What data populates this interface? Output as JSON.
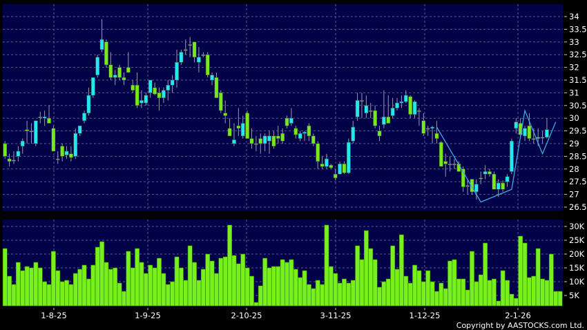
{
  "chart_data": [
    {
      "type": "candlestick",
      "ylim": [
        26.4,
        34.3
      ],
      "y_ticks": [
        "34",
        "33.5",
        "33",
        "32.5",
        "32",
        "31.5",
        "31",
        "30.5",
        "30",
        "29.5",
        "29",
        "28.5",
        "28",
        "27.5",
        "27",
        "26.5"
      ],
      "grid": true,
      "colors": {
        "up": "#22e8f4",
        "down": "#77e81c",
        "wick": "#9a9aa8",
        "background": "#020249",
        "zigzag": "#3fa9e0"
      },
      "ohlc": [
        [
          29.0,
          29.1,
          28.4,
          28.5
        ],
        [
          28.4,
          28.6,
          28.1,
          28.3
        ],
        [
          28.35,
          28.7,
          28.2,
          28.35
        ],
        [
          28.5,
          28.9,
          28.3,
          28.7
        ],
        [
          28.9,
          29.2,
          28.6,
          29.1
        ],
        [
          29.55,
          29.9,
          29.0,
          29.5
        ],
        [
          29.5,
          29.8,
          29.0,
          29.5
        ],
        [
          29.0,
          29.9,
          28.9,
          29.9
        ],
        [
          30.05,
          30.25,
          29.8,
          30.05
        ],
        [
          30.0,
          30.3,
          29.7,
          30.05
        ],
        [
          30.0,
          30.5,
          29.8,
          29.8
        ],
        [
          29.6,
          29.7,
          28.7,
          28.7
        ],
        [
          28.4,
          28.7,
          28.2,
          28.4
        ],
        [
          28.9,
          29.0,
          28.3,
          28.5
        ],
        [
          28.55,
          28.9,
          28.4,
          28.7
        ],
        [
          28.6,
          28.9,
          28.3,
          28.45
        ],
        [
          28.5,
          29.6,
          28.4,
          29.4
        ],
        [
          29.4,
          29.7,
          29.3,
          29.7
        ],
        [
          29.9,
          30.3,
          29.8,
          30.2
        ],
        [
          30.2,
          31.2,
          30.1,
          30.9
        ],
        [
          30.9,
          31.6,
          30.8,
          31.6
        ],
        [
          31.7,
          32.5,
          31.6,
          32.4
        ],
        [
          32.7,
          33.9,
          32.6,
          33.1
        ],
        [
          33.0,
          33.1,
          32.0,
          32.1
        ],
        [
          32.1,
          32.6,
          31.5,
          31.6
        ],
        [
          31.6,
          31.9,
          31.3,
          31.7
        ],
        [
          32.0,
          32.1,
          31.5,
          31.6
        ],
        [
          31.6,
          31.8,
          31.3,
          31.5
        ],
        [
          32.0,
          32.6,
          31.8,
          31.8
        ],
        [
          31.3,
          31.5,
          31.0,
          31.1
        ],
        [
          31.3,
          31.8,
          30.4,
          30.5
        ],
        [
          30.6,
          31.1,
          30.4,
          30.7
        ],
        [
          30.6,
          31.0,
          30.5,
          30.9
        ],
        [
          31.0,
          31.5,
          30.8,
          31.5
        ],
        [
          31.2,
          31.4,
          30.9,
          30.95
        ],
        [
          31.0,
          31.2,
          30.3,
          30.8
        ],
        [
          30.8,
          31.2,
          30.6,
          31.1
        ],
        [
          31.1,
          31.5,
          30.7,
          31.3
        ],
        [
          31.3,
          31.7,
          31.0,
          31.5
        ],
        [
          31.5,
          32.7,
          31.2,
          32.2
        ],
        [
          32.2,
          32.7,
          32.1,
          32.6
        ],
        [
          32.7,
          33.1,
          32.5,
          32.7
        ],
        [
          32.9,
          33.2,
          32.4,
          32.9
        ],
        [
          33.0,
          33.0,
          32.2,
          32.4
        ],
        [
          32.2,
          32.8,
          31.8,
          32.4
        ],
        [
          32.5,
          32.6,
          32.4,
          32.5
        ],
        [
          32.5,
          32.6,
          31.6,
          31.7
        ],
        [
          31.5,
          31.8,
          31.3,
          31.7
        ],
        [
          31.6,
          31.8,
          30.8,
          30.8
        ],
        [
          31.0,
          31.1,
          30.2,
          30.3
        ],
        [
          30.2,
          30.7,
          29.8,
          30.1
        ],
        [
          29.6,
          30.0,
          29.3,
          29.3
        ],
        [
          29.0,
          29.8,
          28.9,
          29.15
        ],
        [
          29.7,
          30.4,
          29.3,
          29.6
        ],
        [
          29.3,
          30.1,
          29.2,
          29.8
        ],
        [
          30.2,
          30.3,
          29.2,
          29.2
        ],
        [
          29.2,
          29.6,
          28.8,
          29.0
        ],
        [
          29.0,
          29.3,
          28.7,
          29.0
        ],
        [
          29.2,
          29.4,
          28.6,
          29.0
        ],
        [
          29.0,
          29.4,
          28.7,
          29.3
        ],
        [
          29.1,
          29.5,
          28.6,
          29.3
        ],
        [
          29.3,
          29.5,
          28.8,
          28.9
        ],
        [
          29.3,
          29.7,
          29.0,
          29.2
        ],
        [
          29.4,
          29.6,
          29.0,
          29.1
        ],
        [
          30.0,
          30.1,
          29.6,
          29.7
        ],
        [
          29.8,
          30.4,
          29.7,
          30.0
        ],
        [
          29.6,
          29.7,
          29.2,
          29.35
        ],
        [
          29.2,
          29.5,
          29.1,
          29.4
        ],
        [
          29.4,
          29.5,
          29.1,
          29.45
        ],
        [
          29.7,
          29.8,
          29.1,
          29.3
        ],
        [
          29.3,
          29.4,
          28.9,
          29.0
        ],
        [
          29.0,
          29.1,
          28.0,
          28.3
        ],
        [
          28.2,
          28.5,
          28.0,
          28.1
        ],
        [
          28.1,
          28.6,
          28.0,
          28.4
        ],
        [
          28.15,
          28.2,
          28.0,
          28.05
        ],
        [
          27.8,
          28.0,
          27.55,
          27.65
        ],
        [
          27.8,
          28.3,
          27.8,
          28.2
        ],
        [
          28.2,
          28.3,
          27.8,
          27.85
        ],
        [
          27.85,
          29.2,
          27.8,
          29.05
        ],
        [
          29.1,
          29.9,
          29.0,
          29.65
        ],
        [
          30.05,
          31.0,
          29.9,
          30.7
        ],
        [
          30.7,
          31.0,
          30.0,
          30.7
        ],
        [
          30.2,
          30.9,
          30.0,
          30.5
        ],
        [
          30.3,
          30.6,
          30.0,
          30.3
        ],
        [
          30.3,
          30.5,
          29.6,
          29.7
        ],
        [
          29.5,
          29.7,
          29.1,
          29.3
        ],
        [
          29.75,
          31.1,
          29.6,
          30.05
        ],
        [
          30.05,
          30.9,
          29.8,
          29.8
        ],
        [
          30.1,
          30.8,
          30.0,
          30.4
        ],
        [
          30.4,
          30.8,
          30.3,
          30.6
        ],
        [
          30.6,
          30.9,
          30.4,
          30.65
        ],
        [
          30.65,
          31.1,
          30.6,
          30.9
        ],
        [
          30.85,
          30.9,
          30.0,
          30.15
        ],
        [
          30.15,
          30.7,
          30.0,
          30.65
        ],
        [
          30.3,
          30.4,
          29.7,
          30.3
        ],
        [
          29.9,
          30.2,
          29.3,
          29.4
        ],
        [
          29.6,
          29.7,
          29.3,
          29.6
        ],
        [
          29.6,
          29.7,
          29.0,
          29.65
        ],
        [
          29.4,
          29.9,
          29.0,
          29.2
        ],
        [
          29.05,
          29.1,
          28.1,
          28.1
        ],
        [
          28.3,
          28.6,
          27.7,
          28.2
        ],
        [
          28.2,
          28.5,
          27.9,
          28.2
        ],
        [
          28.2,
          28.4,
          28.0,
          28.2
        ],
        [
          28.2,
          28.3,
          27.9,
          27.9
        ],
        [
          28.0,
          28.1,
          27.1,
          27.3
        ],
        [
          27.35,
          27.6,
          27.0,
          27.35
        ],
        [
          27.6,
          27.6,
          27.0,
          27.1
        ],
        [
          27.1,
          27.6,
          26.8,
          27.4
        ],
        [
          27.65,
          27.9,
          27.4,
          27.65
        ],
        [
          27.8,
          28.15,
          27.6,
          27.9
        ],
        [
          27.9,
          28.0,
          27.7,
          27.8
        ],
        [
          27.8,
          27.9,
          27.2,
          27.2
        ],
        [
          27.2,
          27.6,
          26.9,
          27.45
        ],
        [
          27.45,
          27.55,
          27.1,
          27.2
        ],
        [
          27.5,
          27.8,
          27.3,
          27.7
        ],
        [
          27.9,
          29.2,
          27.8,
          29.1
        ],
        [
          29.6,
          30.0,
          29.4,
          29.85
        ],
        [
          29.8,
          30.0,
          29.2,
          29.35
        ],
        [
          29.3,
          29.7,
          29.1,
          29.6
        ],
        [
          29.7,
          30.2,
          29.1,
          29.2
        ],
        [
          29.2,
          29.6,
          29.0,
          29.2
        ],
        [
          29.2,
          29.6,
          28.9,
          29.25
        ],
        [
          29.25,
          29.5,
          29.0,
          29.25
        ],
        [
          29.25,
          30.0,
          29.2,
          29.55
        ]
      ],
      "zigzag": [
        {
          "bar": 98,
          "price": 29.65
        },
        {
          "bar": 108,
          "price": 26.7
        },
        {
          "bar": 115,
          "price": 27.2
        },
        {
          "bar": 118,
          "price": 30.3
        },
        {
          "bar": 122,
          "price": 28.6
        },
        {
          "bar": 125,
          "price": 29.85
        }
      ]
    },
    {
      "type": "bar",
      "unit": "K",
      "ylim": [
        0,
        32
      ],
      "y_ticks": [
        "30K",
        "25K",
        "20K",
        "15K",
        "10K",
        "5K"
      ],
      "x_tick_labels": [
        "1-8-25",
        "1-9-25",
        "2-10-25",
        "3-11-25",
        "1-12-25",
        "2-1-26"
      ],
      "grid": true,
      "colors": {
        "bar": "#77f01c",
        "background": "#020249"
      },
      "values": [
        22,
        12,
        9,
        17,
        14,
        15.5,
        15,
        17,
        15,
        10,
        9,
        21,
        14,
        10,
        10.5,
        9,
        13,
        14.5,
        16,
        11,
        16,
        22.5,
        24.5,
        17,
        14.5,
        15,
        9.5,
        6.5,
        21,
        15,
        22,
        17,
        13,
        16,
        15,
        18.5,
        13,
        9,
        10,
        19,
        15,
        10.5,
        23,
        17,
        10.5,
        14.5,
        20,
        17.5,
        13,
        18.5,
        19,
        30.5,
        19.5,
        16.5,
        20,
        15,
        12,
        2.5,
        8.5,
        18.5,
        15,
        15.5,
        15.5,
        18,
        17,
        18,
        14.5,
        11.5,
        14,
        9,
        7.5,
        10.5,
        9,
        30.5,
        15.5,
        13,
        9.5,
        11,
        9.5,
        10.5,
        23,
        18,
        28.5,
        22,
        18,
        8,
        10,
        11,
        23,
        14.5,
        27,
        12,
        9.5,
        16,
        14,
        10,
        14,
        10,
        6.5,
        9.5,
        7.5,
        17.5,
        18,
        11,
        11,
        7,
        21,
        10,
        12.5,
        24,
        10.5,
        11,
        3,
        14,
        10.5,
        5.5,
        4,
        26.5,
        24,
        11.5,
        12,
        22,
        11,
        10.5,
        20,
        6.5,
        6.5
      ]
    }
  ],
  "copyright": "Copyright by AASTOCKS.com Ltd."
}
